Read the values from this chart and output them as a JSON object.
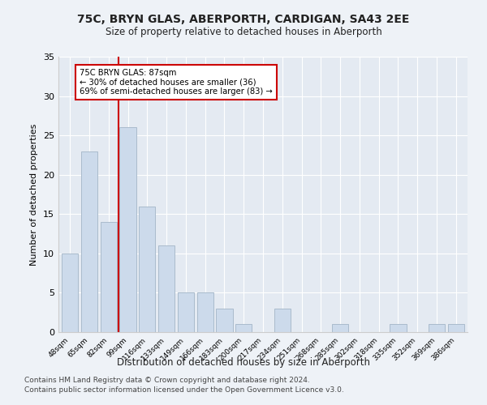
{
  "title1": "75C, BRYN GLAS, ABERPORTH, CARDIGAN, SA43 2EE",
  "title2": "Size of property relative to detached houses in Aberporth",
  "xlabel": "Distribution of detached houses by size in Aberporth",
  "ylabel": "Number of detached properties",
  "categories": [
    "48sqm",
    "65sqm",
    "82sqm",
    "99sqm",
    "116sqm",
    "133sqm",
    "149sqm",
    "166sqm",
    "183sqm",
    "200sqm",
    "217sqm",
    "234sqm",
    "251sqm",
    "268sqm",
    "285sqm",
    "302sqm",
    "318sqm",
    "335sqm",
    "352sqm",
    "369sqm",
    "386sqm"
  ],
  "values": [
    10,
    23,
    14,
    26,
    16,
    11,
    5,
    5,
    3,
    1,
    0,
    3,
    0,
    0,
    1,
    0,
    0,
    1,
    0,
    1,
    1
  ],
  "bar_color": "#ccdaeb",
  "bar_edge_color": "#aabbcc",
  "reference_line_color": "#cc0000",
  "annotation_text": "75C BRYN GLAS: 87sqm\n← 30% of detached houses are smaller (36)\n69% of semi-detached houses are larger (83) →",
  "annotation_box_color": "#cc0000",
  "ylim": [
    0,
    35
  ],
  "yticks": [
    0,
    5,
    10,
    15,
    20,
    25,
    30,
    35
  ],
  "footer1": "Contains HM Land Registry data © Crown copyright and database right 2024.",
  "footer2": "Contains public sector information licensed under the Open Government Licence v3.0.",
  "bg_color": "#eef2f7",
  "plot_bg_color": "#e4eaf2"
}
